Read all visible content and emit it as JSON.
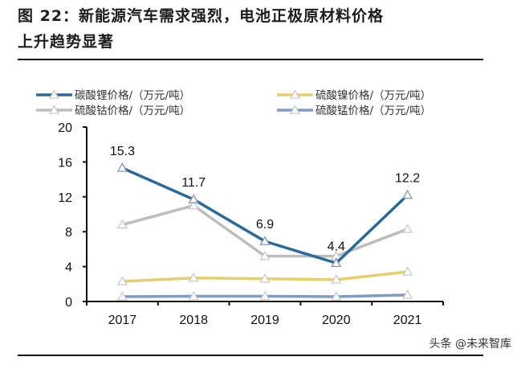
{
  "figure": {
    "title_line1": "图 22：新能源汽车需求强烈，电池正极原材料价格",
    "title_line2": "上升趋势显著",
    "watermark": "头条 @未来智库"
  },
  "chart_data": {
    "type": "line",
    "title": "图 22：新能源汽车需求强烈，电池正极原材料价格上升趋势显著",
    "xlabel": "",
    "ylabel": "",
    "categories": [
      "2017",
      "2018",
      "2019",
      "2020",
      "2021"
    ],
    "ylim": [
      0,
      20
    ],
    "yticks": [
      0,
      4,
      8,
      12,
      16,
      20
    ],
    "ytick_labels": [
      "0",
      "4",
      "8",
      "12",
      "16",
      "20"
    ],
    "grid": false,
    "legend_position": "top",
    "series": [
      {
        "name": "碳酸锂价格/（万元/吨）",
        "color": "#2b6a98",
        "values": [
          15.3,
          11.7,
          6.9,
          4.4,
          12.2
        ],
        "data_labels": [
          "15.3",
          "11.7",
          "6.9",
          "4.4",
          "12.2"
        ]
      },
      {
        "name": "硫酸镍价格/（万元/吨）",
        "color": "#e8cf6e",
        "values": [
          2.3,
          2.7,
          2.6,
          2.5,
          3.4
        ]
      },
      {
        "name": "硫酸钴价格/（万元/吨）",
        "color": "#bdbdbd",
        "values": [
          8.8,
          11.0,
          5.2,
          5.2,
          8.3
        ]
      },
      {
        "name": "硫酸锰价格/（万元/吨）",
        "color": "#7f9cc6",
        "values": [
          0.55,
          0.6,
          0.6,
          0.55,
          0.75
        ]
      }
    ]
  }
}
